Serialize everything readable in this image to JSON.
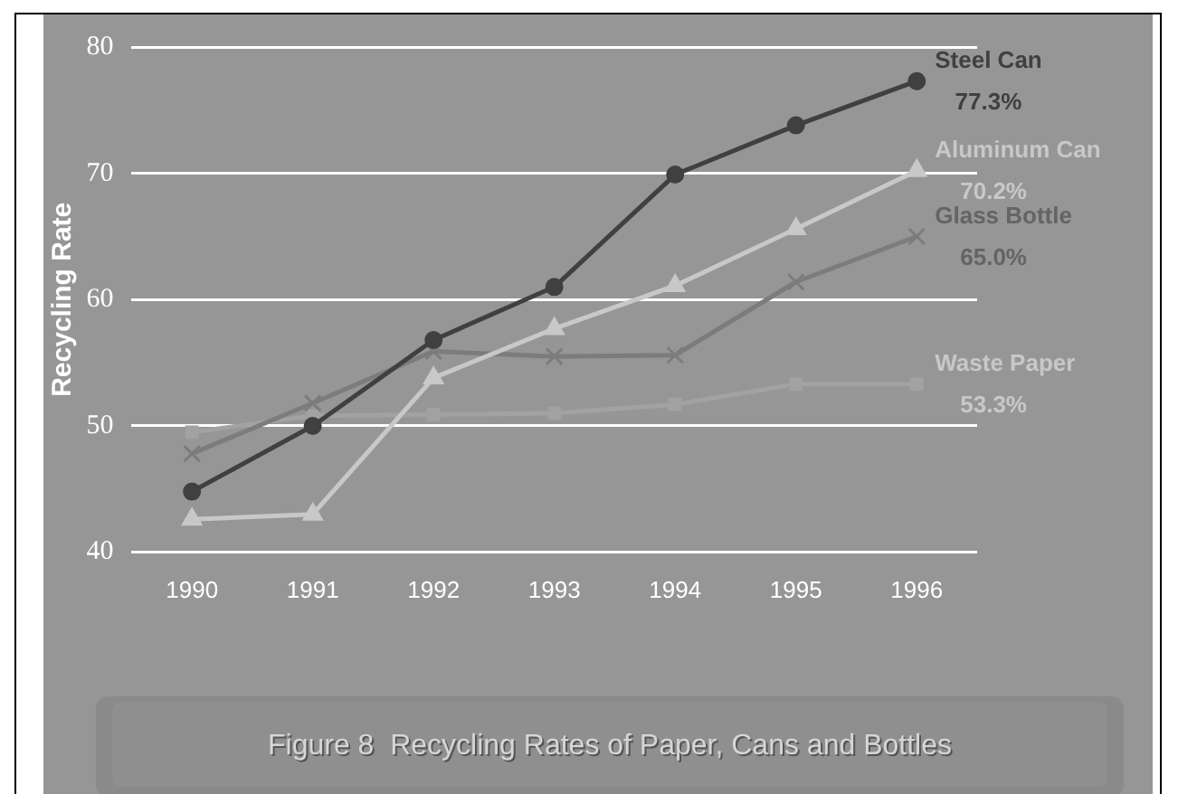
{
  "chart_data": {
    "type": "line",
    "title": "Figure 8  Recycling Rates of Paper, Cans and Bottles",
    "ylabel": "Recycling Rate",
    "categories": [
      "1990",
      "1991",
      "1992",
      "1993",
      "1994",
      "1995",
      "1996"
    ],
    "series": [
      {
        "name": "Steel Can",
        "color": "#404040",
        "marker": "circle",
        "values": [
          44.8,
          50.0,
          56.8,
          61.0,
          69.9,
          73.8,
          77.3
        ],
        "value_labels": [
          null,
          null,
          null,
          null,
          null,
          null,
          "77.3%"
        ]
      },
      {
        "name": "Aluminum Can",
        "color": "#c8c8c8",
        "marker": "triangle",
        "values": [
          42.6,
          43.0,
          53.8,
          57.7,
          61.1,
          65.6,
          70.2
        ],
        "value_labels": [
          null,
          null,
          null,
          null,
          null,
          null,
          "70.2%"
        ]
      },
      {
        "name": "Glass Bottle",
        "color": "#7c7c7c",
        "marker": "cross",
        "values": [
          47.8,
          51.8,
          55.9,
          55.5,
          55.6,
          61.4,
          65.0
        ],
        "value_labels": [
          null,
          null,
          null,
          null,
          null,
          null,
          "65.0%"
        ]
      },
      {
        "name": "Waste Paper",
        "color": "#a2a2a2",
        "marker": "square",
        "values": [
          49.5,
          50.8,
          50.9,
          51.0,
          51.7,
          53.3,
          53.3
        ],
        "value_labels": [
          null,
          null,
          null,
          null,
          null,
          null,
          "53.3%"
        ]
      }
    ],
    "ylim": [
      40,
      80
    ],
    "yticks": [
      40,
      50,
      60,
      70,
      80
    ],
    "grid": "y",
    "legend": false
  }
}
